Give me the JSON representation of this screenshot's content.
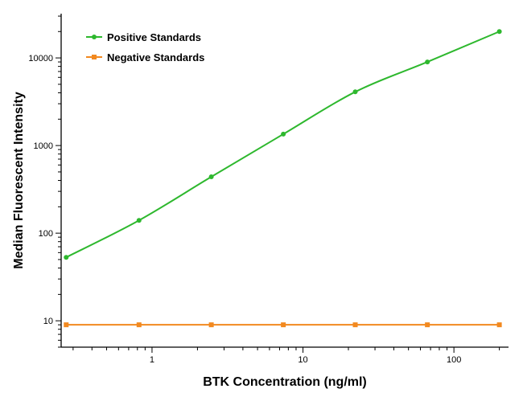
{
  "chart_data": {
    "type": "line",
    "xscale": "log",
    "yscale": "log",
    "xlim": [
      0.25,
      230
    ],
    "ylim": [
      5,
      32000
    ],
    "xlabel": "BTK Concentration (ng/ml)",
    "ylabel": "Median Fluorescent Intensity",
    "x_ticks": [
      1,
      10,
      100
    ],
    "x_tick_labels": [
      "1",
      "10",
      "100"
    ],
    "y_ticks": [
      10,
      100,
      1000,
      10000
    ],
    "y_tick_labels": [
      "10",
      "100",
      "1000",
      "10000"
    ],
    "legend_position": "top-left",
    "grid": false,
    "series": [
      {
        "name": "Positive Standards",
        "color": "#2eb82e",
        "marker": "circle",
        "x": [
          0.27,
          0.82,
          2.47,
          7.41,
          22.2,
          66.7,
          200
        ],
        "y": [
          53,
          140,
          440,
          1350,
          4100,
          9000,
          20000
        ]
      },
      {
        "name": "Negative Standards",
        "color": "#f2891f",
        "marker": "square",
        "x": [
          0.27,
          0.82,
          2.47,
          7.41,
          22.2,
          66.7,
          200
        ],
        "y": [
          9,
          9,
          9,
          9,
          9,
          9,
          9
        ]
      }
    ]
  }
}
